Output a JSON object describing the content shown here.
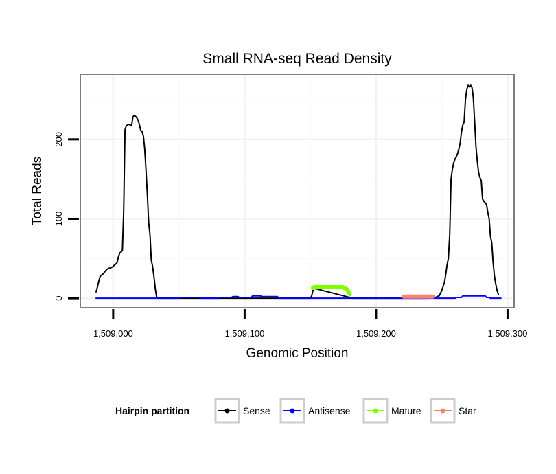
{
  "chart_data": {
    "type": "line",
    "title": "Small RNA-seq Read Density",
    "xlabel": "Genomic Position",
    "ylabel": "Total Reads",
    "xlim": [
      1508975,
      1509305
    ],
    "ylim": [
      -12,
      282
    ],
    "x_ticks": [
      {
        "value": 1509000,
        "label": "1,509,000"
      },
      {
        "value": 1509100,
        "label": "1,509,100"
      },
      {
        "value": 1509200,
        "label": "1,509,200"
      },
      {
        "value": 1509300,
        "label": "1,509,300"
      }
    ],
    "y_ticks": [
      {
        "value": 0,
        "label": "0"
      },
      {
        "value": 100,
        "label": "100"
      },
      {
        "value": 200,
        "label": "200"
      }
    ],
    "grid": true,
    "legend": {
      "title": "Hairpin partition",
      "position": "bottom",
      "entries": [
        {
          "name": "Sense",
          "color": "#000000"
        },
        {
          "name": "Antisense",
          "color": "#0000ff"
        },
        {
          "name": "Mature",
          "color": "#7fff00"
        },
        {
          "name": "Star",
          "color": "#fa8072"
        }
      ]
    },
    "series": [
      {
        "name": "Sense",
        "color": "#000000",
        "width": 2,
        "points": [
          [
            1508987,
            8
          ],
          [
            1508988,
            14
          ],
          [
            1508989,
            21
          ],
          [
            1508990,
            27
          ],
          [
            1508991,
            29
          ],
          [
            1508992,
            30
          ],
          [
            1508993,
            32
          ],
          [
            1508994,
            34
          ],
          [
            1508995,
            36
          ],
          [
            1508996,
            37
          ],
          [
            1508997,
            38
          ],
          [
            1508998,
            38
          ],
          [
            1508999,
            39
          ],
          [
            1509000,
            40
          ],
          [
            1509001,
            42
          ],
          [
            1509002,
            43
          ],
          [
            1509003,
            45
          ],
          [
            1509004,
            52
          ],
          [
            1509005,
            57
          ],
          [
            1509006,
            58
          ],
          [
            1509007,
            60
          ],
          [
            1509008,
            110
          ],
          [
            1509009,
            212
          ],
          [
            1509010,
            217
          ],
          [
            1509011,
            218
          ],
          [
            1509012,
            219
          ],
          [
            1509013,
            218
          ],
          [
            1509014,
            217
          ],
          [
            1509015,
            228
          ],
          [
            1509016,
            230
          ],
          [
            1509017,
            229
          ],
          [
            1509018,
            227
          ],
          [
            1509019,
            224
          ],
          [
            1509020,
            218
          ],
          [
            1509021,
            211
          ],
          [
            1509022,
            210
          ],
          [
            1509023,
            204
          ],
          [
            1509024,
            188
          ],
          [
            1509025,
            160
          ],
          [
            1509026,
            130
          ],
          [
            1509027,
            95
          ],
          [
            1509028,
            80
          ],
          [
            1509029,
            48
          ],
          [
            1509030,
            40
          ],
          [
            1509031,
            28
          ],
          [
            1509032,
            12
          ],
          [
            1509033,
            2
          ],
          [
            1509034,
            0
          ],
          [
            1509036,
            0
          ],
          [
            1509050,
            0
          ],
          [
            1509100,
            0
          ],
          [
            1509140,
            0
          ],
          [
            1509150,
            0
          ],
          [
            1509151,
            3
          ],
          [
            1509152,
            10
          ],
          [
            1509153,
            12
          ],
          [
            1509154,
            12
          ],
          [
            1509180,
            1
          ],
          [
            1509182,
            0
          ],
          [
            1509230,
            0
          ],
          [
            1509240,
            0
          ],
          [
            1509245,
            1
          ],
          [
            1509248,
            3
          ],
          [
            1509250,
            10
          ],
          [
            1509252,
            20
          ],
          [
            1509253,
            30
          ],
          [
            1509254,
            42
          ],
          [
            1509255,
            50
          ],
          [
            1509256,
            80
          ],
          [
            1509257,
            150
          ],
          [
            1509258,
            162
          ],
          [
            1509259,
            170
          ],
          [
            1509260,
            175
          ],
          [
            1509261,
            178
          ],
          [
            1509262,
            182
          ],
          [
            1509263,
            188
          ],
          [
            1509264,
            196
          ],
          [
            1509265,
            210
          ],
          [
            1509266,
            218
          ],
          [
            1509267,
            222
          ],
          [
            1509268,
            250
          ],
          [
            1509269,
            263
          ],
          [
            1509270,
            268
          ],
          [
            1509271,
            266
          ],
          [
            1509272,
            268
          ],
          [
            1509273,
            265
          ],
          [
            1509274,
            252
          ],
          [
            1509275,
            222
          ],
          [
            1509276,
            190
          ],
          [
            1509277,
            172
          ],
          [
            1509278,
            158
          ],
          [
            1509279,
            152
          ],
          [
            1509280,
            148
          ],
          [
            1509281,
            125
          ],
          [
            1509282,
            122
          ],
          [
            1509283,
            120
          ],
          [
            1509284,
            118
          ],
          [
            1509285,
            108
          ],
          [
            1509286,
            100
          ],
          [
            1509287,
            78
          ],
          [
            1509288,
            70
          ],
          [
            1509289,
            45
          ],
          [
            1509290,
            28
          ],
          [
            1509291,
            18
          ],
          [
            1509292,
            10
          ],
          [
            1509293,
            5
          ]
        ]
      },
      {
        "name": "Antisense",
        "color": "#0000ff",
        "width": 2,
        "points": [
          [
            1508987,
            0
          ],
          [
            1509050,
            0
          ],
          [
            1509051,
            1
          ],
          [
            1509066,
            1
          ],
          [
            1509067,
            0
          ],
          [
            1509080,
            0
          ],
          [
            1509081,
            1
          ],
          [
            1509090,
            1
          ],
          [
            1509091,
            2
          ],
          [
            1509095,
            2
          ],
          [
            1509096,
            1
          ],
          [
            1509105,
            1
          ],
          [
            1509106,
            3
          ],
          [
            1509112,
            3
          ],
          [
            1509113,
            2
          ],
          [
            1509125,
            2
          ],
          [
            1509126,
            0
          ],
          [
            1509150,
            0
          ],
          [
            1509260,
            0
          ],
          [
            1509261,
            1
          ],
          [
            1509265,
            1
          ],
          [
            1509266,
            3
          ],
          [
            1509283,
            3
          ],
          [
            1509284,
            1
          ],
          [
            1509286,
            1
          ],
          [
            1509287,
            0
          ],
          [
            1509295,
            0
          ]
        ]
      },
      {
        "name": "Mature",
        "color": "#7fff00",
        "width": 6,
        "points": [
          [
            1509152,
            13
          ],
          [
            1509153,
            14
          ],
          [
            1509155,
            14
          ],
          [
            1509160,
            14
          ],
          [
            1509165,
            14
          ],
          [
            1509170,
            14
          ],
          [
            1509174,
            14
          ],
          [
            1509176,
            13
          ],
          [
            1509178,
            11
          ],
          [
            1509179,
            8
          ],
          [
            1509180,
            5
          ]
        ]
      },
      {
        "name": "Star",
        "color": "#fa8072",
        "width": 6,
        "points": [
          [
            1509221,
            2
          ],
          [
            1509226,
            2
          ],
          [
            1509232,
            2
          ],
          [
            1509238,
            2
          ],
          [
            1509243,
            2
          ]
        ]
      }
    ]
  }
}
